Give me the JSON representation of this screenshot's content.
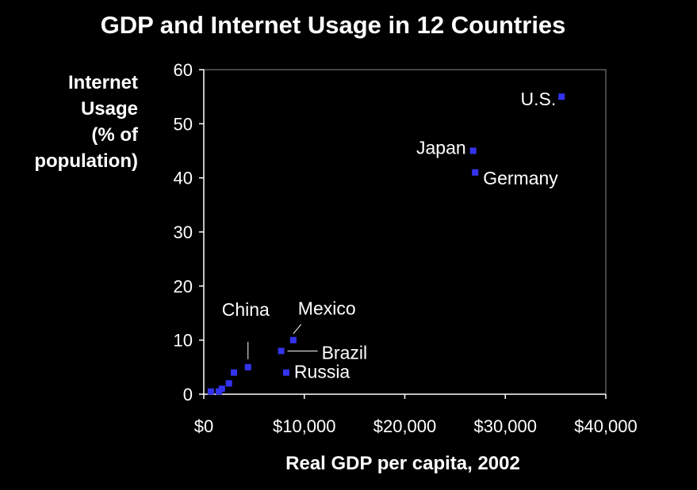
{
  "chart_data": {
    "type": "scatter",
    "title": "GDP and Internet Usage in 12 Countries",
    "xlabel": "Real GDP per capita, 2002",
    "ylabel_lines": [
      "Internet",
      "Usage",
      "(% of",
      "population)"
    ],
    "xlim": [
      0,
      40000
    ],
    "ylim": [
      0,
      60
    ],
    "x_ticks": [
      0,
      10000,
      20000,
      30000,
      40000
    ],
    "x_tick_labels": [
      "$0",
      "$10,000",
      "$20,000",
      "$30,000",
      "$40,000"
    ],
    "y_ticks": [
      0,
      10,
      20,
      30,
      40,
      50,
      60
    ],
    "y_tick_labels": [
      "0",
      "10",
      "20",
      "30",
      "40",
      "50",
      "60"
    ],
    "grid": false,
    "marker_color": "#3333ee",
    "axis_color": "#ffffff",
    "background": "#000000",
    "points": [
      {
        "x": 700,
        "y": 0.5,
        "label": ""
      },
      {
        "x": 1500,
        "y": 0.5,
        "label": ""
      },
      {
        "x": 1800,
        "y": 1,
        "label": ""
      },
      {
        "x": 2500,
        "y": 2,
        "label": ""
      },
      {
        "x": 3000,
        "y": 4,
        "label": ""
      },
      {
        "x": 4400,
        "y": 5,
        "label": "China"
      },
      {
        "x": 7700,
        "y": 8,
        "label": "Brazil"
      },
      {
        "x": 8200,
        "y": 4,
        "label": "Russia"
      },
      {
        "x": 8900,
        "y": 10,
        "label": "Mexico"
      },
      {
        "x": 26800,
        "y": 45,
        "label": "Japan"
      },
      {
        "x": 27000,
        "y": 41,
        "label": "Germany"
      },
      {
        "x": 35600,
        "y": 55,
        "label": "U.S."
      }
    ]
  }
}
